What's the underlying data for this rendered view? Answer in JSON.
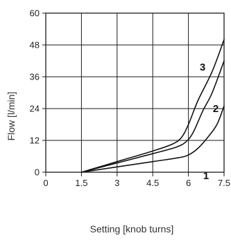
{
  "chart_data": {
    "type": "line",
    "title": "",
    "xlabel": "Setting [knob turns]",
    "ylabel": "Flow [l/min]",
    "xlim": [
      0,
      7.5
    ],
    "ylim": [
      0,
      60
    ],
    "x_ticks": [
      0,
      1.5,
      3,
      4.5,
      6,
      7.5
    ],
    "x_tick_labels": [
      "0",
      "1.5",
      "3",
      "4.5",
      "6",
      "7.5"
    ],
    "y_ticks": [
      0,
      12,
      24,
      36,
      48,
      60
    ],
    "y_tick_labels": [
      "0",
      "12",
      "24",
      "36",
      "48",
      "60"
    ],
    "grid": true,
    "series": [
      {
        "name": "1",
        "points": [
          [
            1.5,
            0
          ],
          [
            3,
            2
          ],
          [
            4.5,
            4
          ],
          [
            5.6,
            5.5
          ],
          [
            6,
            6.5
          ],
          [
            6.4,
            9
          ],
          [
            6.8,
            13
          ],
          [
            7.2,
            18
          ],
          [
            7.5,
            25
          ]
        ]
      },
      {
        "name": "2",
        "points": [
          [
            1.5,
            0
          ],
          [
            3,
            3.5
          ],
          [
            4.5,
            7
          ],
          [
            5.5,
            9.5
          ],
          [
            5.9,
            11.5
          ],
          [
            6.2,
            15
          ],
          [
            6.6,
            23
          ],
          [
            7.0,
            30
          ],
          [
            7.5,
            42
          ]
        ]
      },
      {
        "name": "3",
        "points": [
          [
            1.5,
            0
          ],
          [
            3,
            4
          ],
          [
            4.5,
            8
          ],
          [
            5.3,
            10.5
          ],
          [
            5.7,
            13
          ],
          [
            6.0,
            18
          ],
          [
            6.4,
            27
          ],
          [
            7.0,
            38
          ],
          [
            7.5,
            50
          ]
        ]
      }
    ]
  }
}
